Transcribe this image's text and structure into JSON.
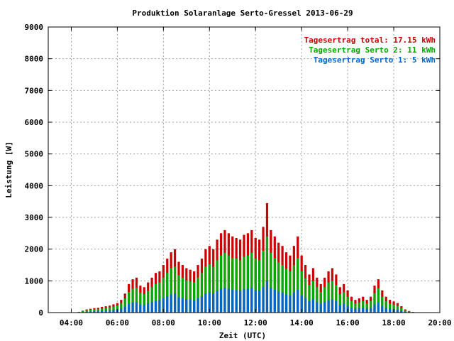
{
  "chart_data": {
    "type": "bar",
    "title": "Produktion Solaranlage Serto-Gressel 2013-06-29",
    "xlabel": "Zeit (UTC)",
    "ylabel": "Leistung [W]",
    "xlim": [
      "03:00",
      "20:00"
    ],
    "ylim": [
      0,
      9000
    ],
    "grid": true,
    "legend_position": "top-right",
    "x_ticks": [
      "04:00",
      "06:00",
      "08:00",
      "10:00",
      "12:00",
      "14:00",
      "16:00",
      "18:00",
      "20:00"
    ],
    "y_ticks": [
      "0",
      "1000",
      "2000",
      "3000",
      "4000",
      "5000",
      "6000",
      "7000",
      "8000",
      "9000"
    ],
    "legend": [
      {
        "label": "Tagesertrag total: 17.15 kWh",
        "color": "#cc0000"
      },
      {
        "label": "Tagesertrag Serto 2: 11 kWh",
        "color": "#00aa00"
      },
      {
        "label": "Tagesertrag Serto 1: 5 kWh",
        "color": "#0066cc"
      }
    ],
    "colors": {
      "total": "#cc0000",
      "serto2": "#00aa00",
      "serto1": "#0066cc"
    },
    "x": [
      "04:20",
      "04:30",
      "04:40",
      "04:50",
      "05:00",
      "05:10",
      "05:20",
      "05:30",
      "05:40",
      "05:50",
      "06:00",
      "06:10",
      "06:20",
      "06:30",
      "06:40",
      "06:50",
      "07:00",
      "07:10",
      "07:20",
      "07:30",
      "07:40",
      "07:50",
      "08:00",
      "08:10",
      "08:20",
      "08:30",
      "08:40",
      "08:50",
      "09:00",
      "09:10",
      "09:20",
      "09:30",
      "09:40",
      "09:50",
      "10:00",
      "10:10",
      "10:20",
      "10:30",
      "10:40",
      "10:50",
      "11:00",
      "11:10",
      "11:20",
      "11:30",
      "11:40",
      "11:50",
      "12:00",
      "12:10",
      "12:20",
      "12:30",
      "12:40",
      "12:50",
      "13:00",
      "13:10",
      "13:20",
      "13:30",
      "13:40",
      "13:50",
      "14:00",
      "14:10",
      "14:20",
      "14:30",
      "14:40",
      "14:50",
      "15:00",
      "15:10",
      "15:20",
      "15:30",
      "15:40",
      "15:50",
      "16:00",
      "16:10",
      "16:20",
      "16:30",
      "16:40",
      "16:50",
      "17:00",
      "17:10",
      "17:20",
      "17:30",
      "17:40",
      "17:50",
      "18:00",
      "18:10",
      "18:20",
      "18:30",
      "18:40",
      "18:50",
      "19:00"
    ],
    "series": [
      {
        "name": "Tagesertrag total: 17.15 kWh",
        "values": [
          20,
          60,
          100,
          120,
          140,
          150,
          180,
          200,
          220,
          260,
          300,
          400,
          600,
          900,
          1050,
          1100,
          850,
          800,
          950,
          1100,
          1250,
          1300,
          1500,
          1700,
          1900,
          2000,
          1600,
          1500,
          1400,
          1350,
          1300,
          1500,
          1700,
          2000,
          2100,
          2000,
          2300,
          2500,
          2600,
          2500,
          2400,
          2350,
          2300,
          2450,
          2500,
          2600,
          2350,
          2300,
          2700,
          3450,
          2600,
          2400,
          2200,
          2100,
          1900,
          1800,
          2100,
          2400,
          1800,
          1500,
          1200,
          1400,
          1100,
          900,
          1100,
          1300,
          1400,
          1200,
          800,
          900,
          700,
          500,
          400,
          450,
          500,
          400,
          500,
          850,
          1050,
          700,
          500,
          400,
          350,
          300,
          200,
          100,
          50,
          20,
          10
        ]
      },
      {
        "name": "Tagesertrag Serto 2: 11 kWh",
        "values": [
          15,
          45,
          75,
          90,
          105,
          110,
          130,
          150,
          165,
          190,
          220,
          300,
          450,
          650,
          750,
          780,
          620,
          580,
          690,
          800,
          900,
          950,
          1100,
          1250,
          1400,
          1450,
          1180,
          1100,
          1020,
          980,
          950,
          1100,
          1250,
          1450,
          1520,
          1450,
          1650,
          1800,
          1880,
          1800,
          1720,
          1700,
          1650,
          1760,
          1800,
          1880,
          1700,
          1650,
          1950,
          2400,
          1880,
          1720,
          1580,
          1500,
          1380,
          1300,
          1500,
          1720,
          1300,
          1080,
          870,
          1000,
          800,
          650,
          800,
          940,
          1000,
          870,
          580,
          650,
          500,
          360,
          290,
          320,
          360,
          290,
          360,
          610,
          760,
          500,
          360,
          290,
          250,
          215,
          145,
          72,
          36,
          15,
          7
        ]
      },
      {
        "name": "Tagesertrag Serto 1: 5 kWh",
        "values": [
          6,
          18,
          30,
          36,
          42,
          45,
          54,
          60,
          66,
          78,
          90,
          120,
          180,
          270,
          315,
          330,
          255,
          240,
          285,
          330,
          375,
          390,
          450,
          510,
          570,
          600,
          480,
          450,
          420,
          405,
          390,
          450,
          510,
          600,
          630,
          600,
          690,
          750,
          780,
          750,
          720,
          705,
          690,
          735,
          750,
          780,
          705,
          690,
          810,
          1000,
          780,
          720,
          660,
          630,
          570,
          540,
          630,
          720,
          540,
          450,
          360,
          420,
          330,
          270,
          330,
          390,
          420,
          360,
          240,
          270,
          210,
          150,
          120,
          135,
          150,
          120,
          150,
          255,
          315,
          210,
          150,
          120,
          105,
          90,
          60,
          30,
          15,
          6,
          3
        ]
      }
    ]
  }
}
